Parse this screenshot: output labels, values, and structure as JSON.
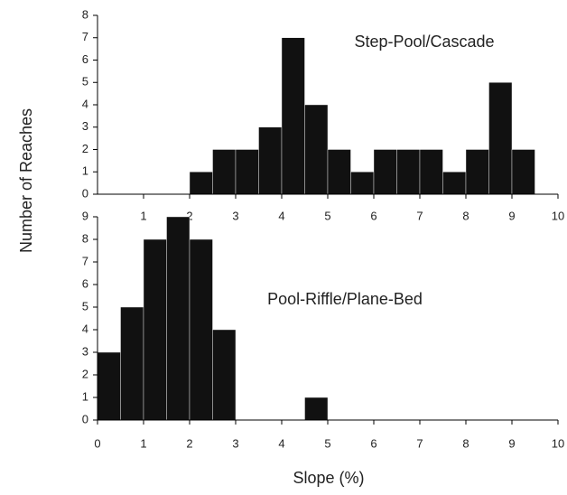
{
  "chart_data": [
    {
      "type": "histogram",
      "annotation": "Step-Pool/Cascade",
      "ylabel": "Number of Reaches",
      "bins": [
        0,
        0.5,
        1,
        1.5,
        2,
        2.5,
        3,
        3.5,
        4,
        4.5,
        5,
        5.5,
        6,
        6.5,
        7,
        7.5,
        8,
        8.5,
        9,
        9.5,
        10
      ],
      "values": [
        0,
        0,
        0,
        0,
        1,
        2,
        2,
        3,
        7,
        4,
        2,
        1,
        2,
        2,
        2,
        1,
        2,
        5,
        2,
        0
      ],
      "color": "#111111",
      "xlim": [
        0,
        10
      ],
      "xticks": [
        1,
        2,
        3,
        4,
        5,
        6,
        7,
        8,
        9,
        10
      ],
      "ylim": [
        0,
        8
      ],
      "yticks": [
        0,
        1,
        2,
        3,
        4,
        5,
        6,
        7,
        8
      ]
    },
    {
      "type": "histogram",
      "annotation": "Pool-Riffle/Plane-Bed",
      "xlabel": "Slope (%)",
      "bins": [
        0,
        0.5,
        1,
        1.5,
        2,
        2.5,
        3,
        3.5,
        4,
        4.5,
        5,
        5.5,
        6,
        6.5,
        7,
        7.5,
        8,
        8.5,
        9,
        9.5,
        10
      ],
      "values": [
        3,
        5,
        8,
        9,
        8,
        4,
        0,
        0,
        0,
        1,
        0,
        0,
        0,
        0,
        0,
        0,
        0,
        0,
        0,
        0
      ],
      "color": "#111111",
      "xlim": [
        0,
        10
      ],
      "xticks": [
        0,
        1,
        2,
        3,
        4,
        5,
        6,
        7,
        8,
        9,
        10
      ],
      "ylim": [
        0,
        9
      ],
      "yticks": [
        0,
        1,
        2,
        3,
        4,
        5,
        6,
        7,
        8,
        9
      ]
    }
  ]
}
